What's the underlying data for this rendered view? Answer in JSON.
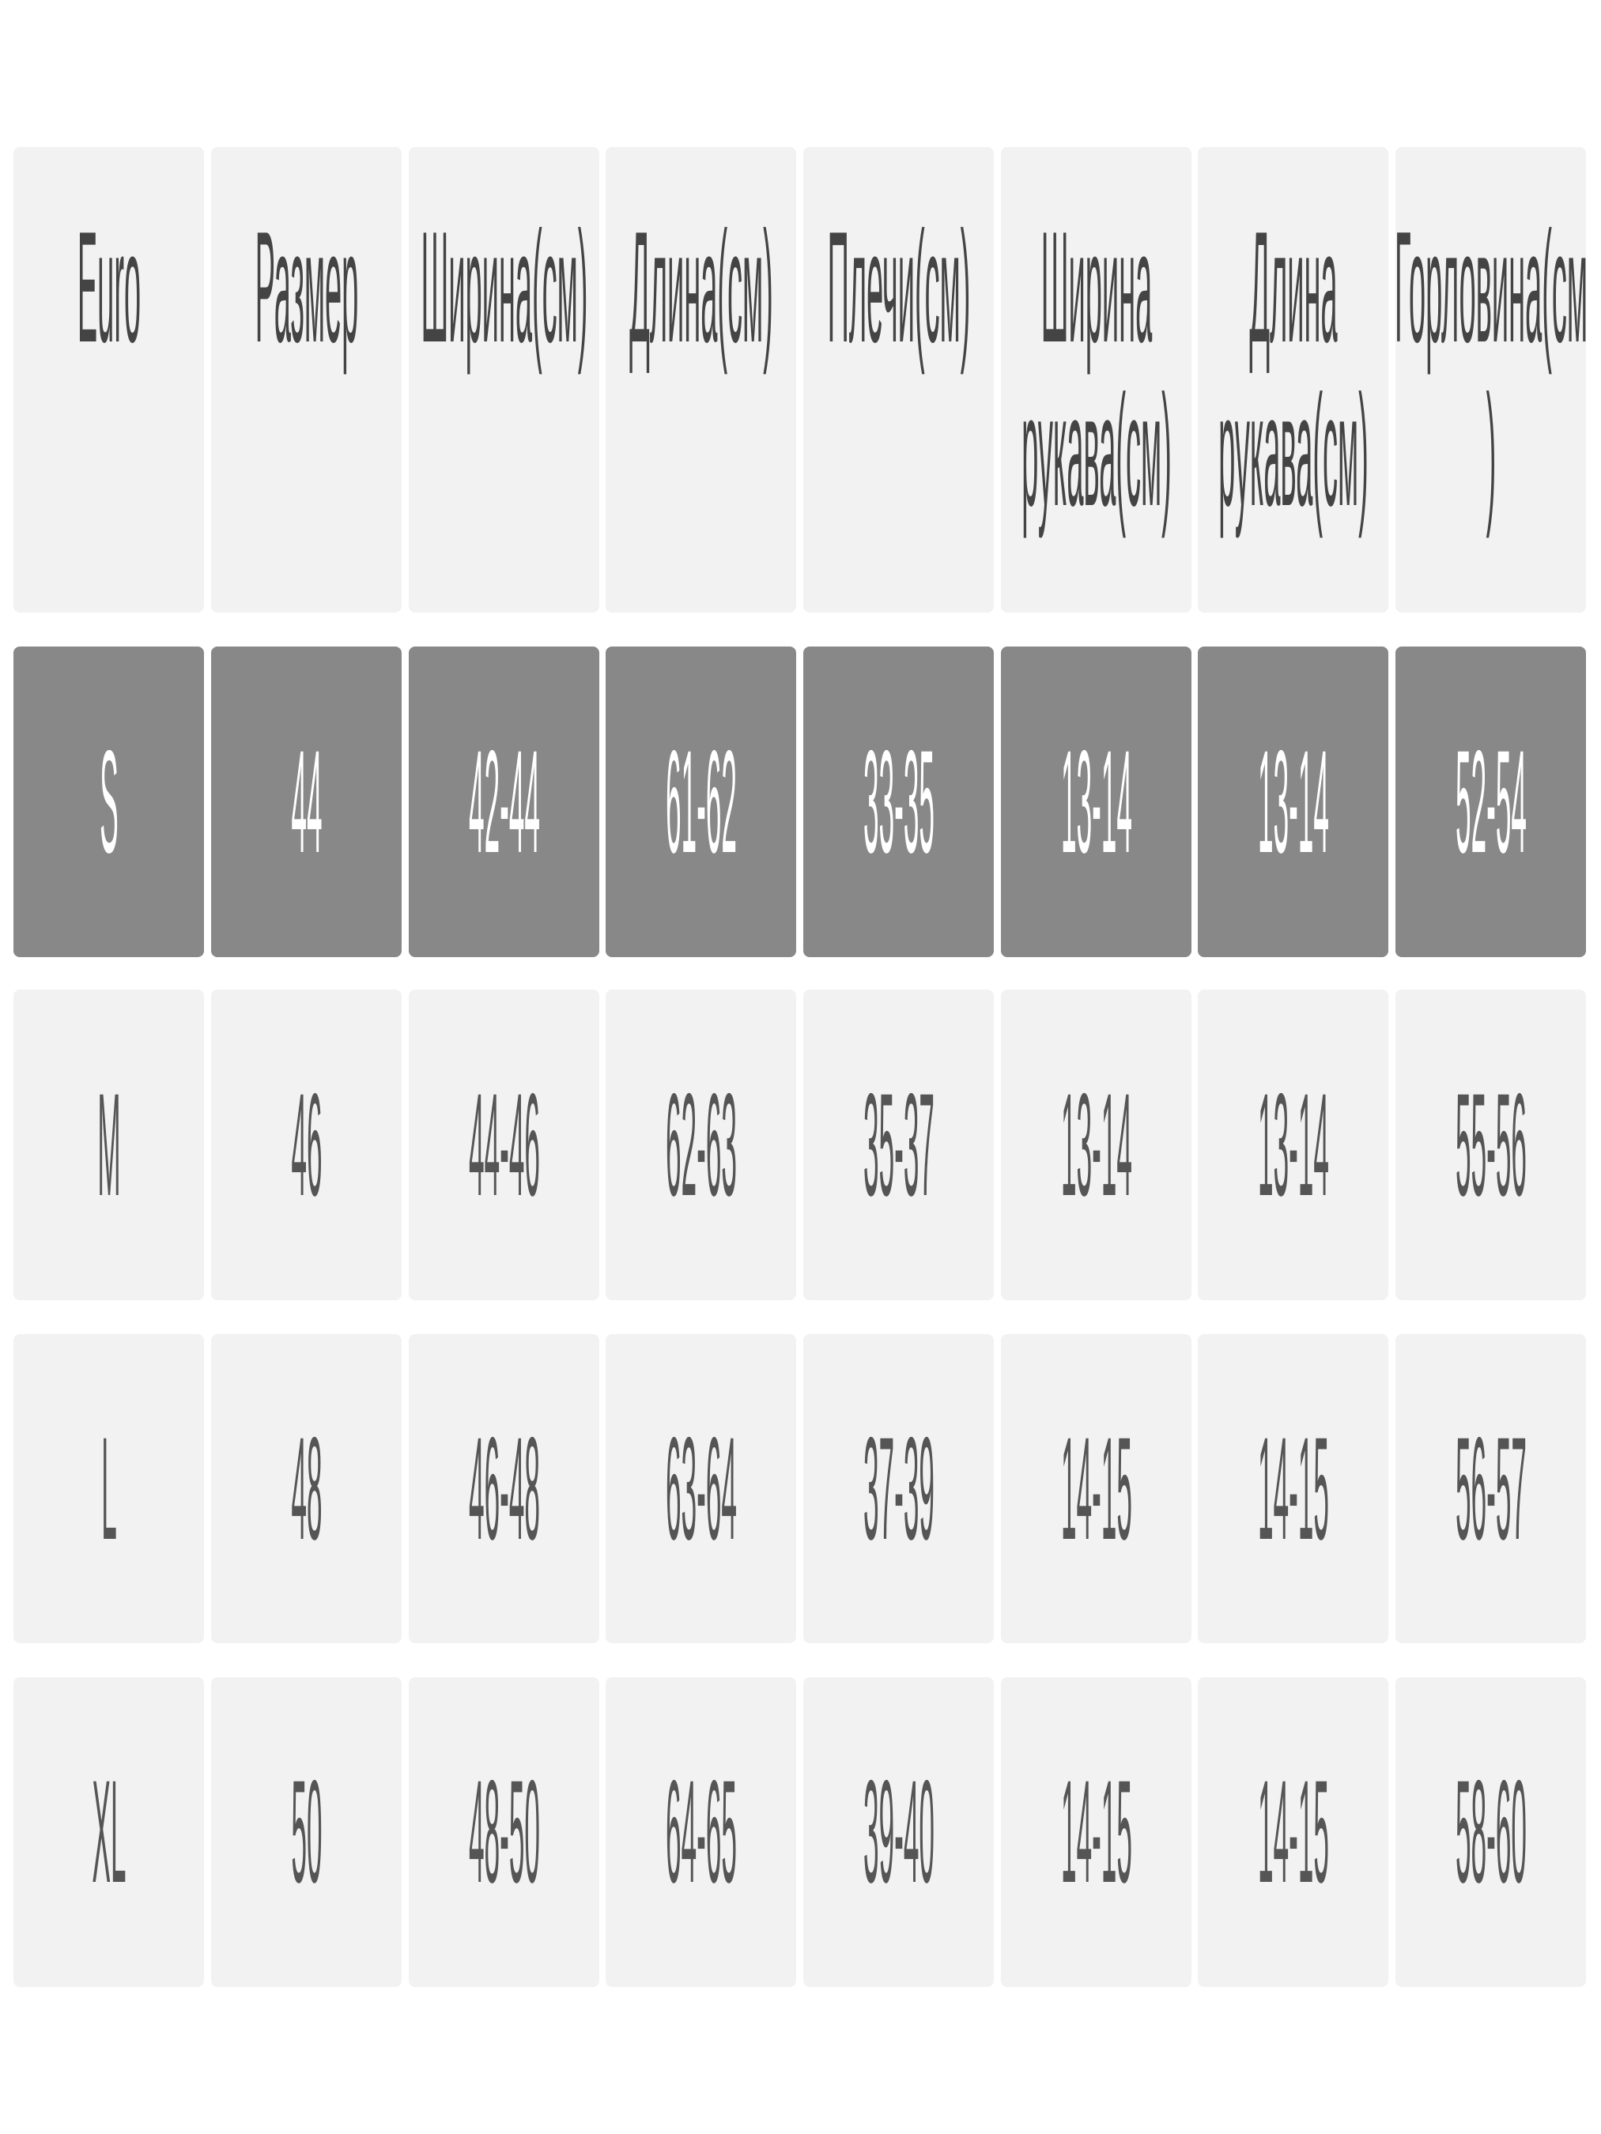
{
  "table": {
    "headers": [
      "Euro",
      "Размер",
      "Ширина(см)",
      "Длина(см)",
      "Плечи(см)",
      "Ширина рукава(см)",
      "Длина рукава(см)",
      "Горловина(см)"
    ],
    "rows": [
      {
        "cells": [
          "S",
          "44",
          "42-44",
          "61-62",
          "33-35",
          "13-14",
          "13-14",
          "52-54"
        ],
        "highlighted": true
      },
      {
        "cells": [
          "M",
          "46",
          "44-46",
          "62-63",
          "35-37",
          "13-14",
          "13-14",
          "55-56"
        ],
        "highlighted": false
      },
      {
        "cells": [
          "L",
          "48",
          "46-48",
          "63-64",
          "37-39",
          "14-15",
          "14-15",
          "56-57"
        ],
        "highlighted": false
      },
      {
        "cells": [
          "XL",
          "50",
          "48-50",
          "64-65",
          "39-40",
          "14-15",
          "14-15",
          "58-60"
        ],
        "highlighted": false
      }
    ],
    "colors": {
      "header_bg": "#f2f2f2",
      "highlight_bg": "#888888",
      "row_bg": "#f2f2f2"
    }
  }
}
